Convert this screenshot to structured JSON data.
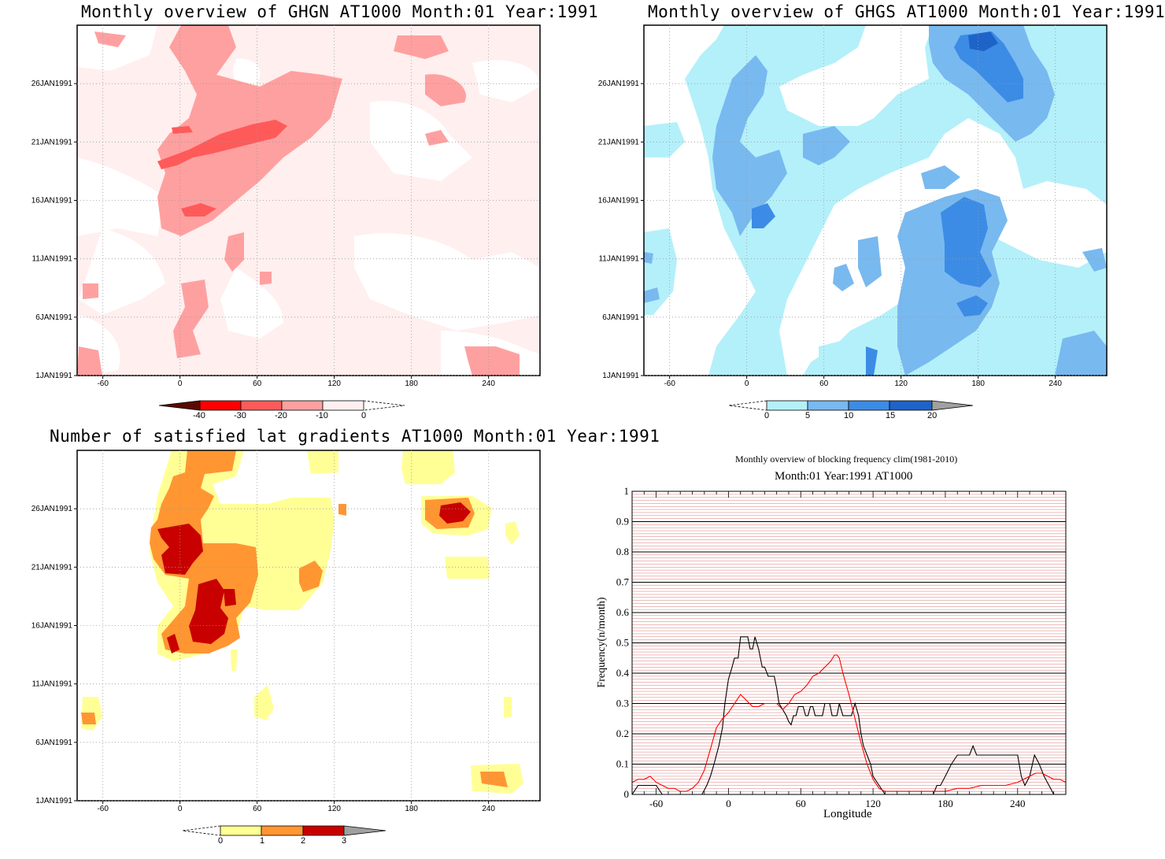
{
  "panels": {
    "ghgn": {
      "title": "Monthly overview of GHGN AT1000 Month:01 Year:1991",
      "x_ticks": [
        "-60",
        "0",
        "60",
        "120",
        "180",
        "240"
      ],
      "y_ticks": [
        "1JAN1991",
        "6JAN1991",
        "11JAN1991",
        "16JAN1991",
        "21JAN1991",
        "26JAN1991"
      ],
      "colorbar": {
        "labels": [
          "-40",
          "-30",
          "-20",
          "-10",
          "0"
        ],
        "colors": [
          "#5a0a00",
          "#ff0000",
          "#ff5a5a",
          "#ffa0a0",
          "#ffefef"
        ]
      }
    },
    "ghgs": {
      "title": "Monthly overview of GHGS AT1000 Month:01 Year:1991",
      "x_ticks": [
        "-60",
        "0",
        "60",
        "120",
        "180",
        "240"
      ],
      "y_ticks": [
        "1JAN1991",
        "6JAN1991",
        "11JAN1991",
        "16JAN1991",
        "21JAN1991",
        "26JAN1991"
      ],
      "colorbar": {
        "labels": [
          "0",
          "5",
          "10",
          "15",
          "20"
        ],
        "colors": [
          "#b4f0fa",
          "#78b9f0",
          "#3c8ce6",
          "#1e64c8",
          "#a0a0a0"
        ]
      }
    },
    "gradients": {
      "title": "Number of satisfied lat gradients AT1000 Month:01 Year:1991",
      "x_ticks": [
        "-60",
        "0",
        "60",
        "120",
        "180",
        "240"
      ],
      "y_ticks": [
        "1JAN1991",
        "6JAN1991",
        "11JAN1991",
        "16JAN1991",
        "21JAN1991",
        "26JAN1991"
      ],
      "colorbar": {
        "labels": [
          "0",
          "1",
          "2",
          "3"
        ],
        "colors": [
          "#ffff96",
          "#ff9632",
          "#c80000",
          "#a0a0a0"
        ]
      }
    },
    "frequency": {
      "title": "Monthly overview of blocking frequency clim(1981-2010)",
      "subtitle": "Month:01 Year:1991  AT1000"
    }
  },
  "chart_data": [
    {
      "type": "heatmap",
      "title": "Monthly overview of GHGN AT1000 Month:01 Year:1991",
      "xlim": [
        -80,
        280
      ],
      "x_ticks": [
        -60,
        0,
        60,
        120,
        180,
        240
      ],
      "y_ticks": [
        "1JAN1991",
        "6JAN1991",
        "11JAN1991",
        "16JAN1991",
        "21JAN1991",
        "26JAN1991"
      ],
      "levels": [
        -40,
        -30,
        -20,
        -10,
        0
      ]
    },
    {
      "type": "heatmap",
      "title": "Monthly overview of GHGS AT1000 Month:01 Year:1991",
      "xlim": [
        -80,
        280
      ],
      "x_ticks": [
        -60,
        0,
        60,
        120,
        180,
        240
      ],
      "y_ticks": [
        "1JAN1991",
        "6JAN1991",
        "11JAN1991",
        "16JAN1991",
        "21JAN1991",
        "26JAN1991"
      ],
      "levels": [
        0,
        5,
        10,
        15,
        20
      ]
    },
    {
      "type": "heatmap",
      "title": "Number of satisfied lat gradients AT1000 Month:01 Year:1991",
      "xlim": [
        -80,
        280
      ],
      "x_ticks": [
        -60,
        0,
        60,
        120,
        180,
        240
      ],
      "y_ticks": [
        "1JAN1991",
        "6JAN1991",
        "11JAN1991",
        "16JAN1991",
        "21JAN1991",
        "26JAN1991"
      ],
      "levels": [
        0,
        1,
        2,
        3
      ]
    },
    {
      "type": "line",
      "title": "Monthly overview of blocking frequency clim(1981-2010)",
      "subtitle": "Month:01 Year:1991  AT1000",
      "xlabel": "Longitude",
      "ylabel": "Frequency(n/month)",
      "xlim": [
        -80,
        280
      ],
      "ylim": [
        0,
        1
      ],
      "x_ticks": [
        -60,
        0,
        60,
        120,
        180,
        240
      ],
      "y_ticks": [
        0,
        0.1,
        0.2,
        0.3,
        0.4,
        0.5,
        0.6,
        0.7,
        0.8,
        0.9,
        1
      ],
      "grid": true,
      "series": [
        {
          "color": "#000000",
          "x": [
            -80,
            -75,
            -70,
            -65,
            -60,
            -55,
            -45,
            -35,
            -25,
            -22,
            -18,
            -15,
            -12,
            -10,
            -8,
            -5,
            -3,
            0,
            3,
            5,
            8,
            10,
            12,
            14,
            16,
            18,
            20,
            22,
            25,
            28,
            30,
            33,
            36,
            38,
            40,
            42,
            45,
            48,
            50,
            52,
            54,
            56,
            58,
            60,
            62,
            64,
            66,
            68,
            70,
            72,
            75,
            78,
            80,
            82,
            84,
            86,
            88,
            90,
            92,
            95,
            98,
            100,
            102,
            105,
            108,
            110,
            112,
            115,
            118,
            120,
            125,
            130,
            140,
            150,
            160,
            170,
            173,
            176,
            180,
            185,
            190,
            195,
            200,
            203,
            206,
            210,
            215,
            220,
            225,
            230,
            235,
            240,
            243,
            246,
            250,
            254,
            258,
            262,
            266,
            270
          ],
          "y": [
            0,
            0.03,
            0.03,
            0.03,
            0.03,
            0,
            0,
            0,
            0,
            0,
            0.03,
            0.06,
            0.1,
            0.13,
            0.16,
            0.22,
            0.3,
            0.38,
            0.42,
            0.45,
            0.45,
            0.52,
            0.52,
            0.52,
            0.52,
            0.48,
            0.48,
            0.52,
            0.48,
            0.42,
            0.42,
            0.39,
            0.39,
            0.39,
            0.35,
            0.3,
            0.28,
            0.26,
            0.24,
            0.23,
            0.26,
            0.26,
            0.29,
            0.29,
            0.29,
            0.26,
            0.26,
            0.29,
            0.29,
            0.26,
            0.26,
            0.26,
            0.3,
            0.3,
            0.3,
            0.26,
            0.26,
            0.26,
            0.3,
            0.26,
            0.26,
            0.26,
            0.26,
            0.3,
            0.26,
            0.2,
            0.16,
            0.13,
            0.1,
            0.06,
            0.03,
            0,
            0,
            0,
            0,
            0,
            0.03,
            0.03,
            0.06,
            0.1,
            0.13,
            0.13,
            0.13,
            0.16,
            0.13,
            0.13,
            0.13,
            0.13,
            0.13,
            0.13,
            0.13,
            0.13,
            0.06,
            0.03,
            0.06,
            0.13,
            0.1,
            0.06,
            0.03,
            0
          ]
        },
        {
          "color": "#ff0000",
          "x": [
            -80,
            -75,
            -70,
            -65,
            -60,
            -55,
            -50,
            -45,
            -40,
            -35,
            -30,
            -25,
            -20,
            -15,
            -10,
            -5,
            0,
            5,
            10,
            15,
            20,
            25,
            30,
            35,
            40,
            45,
            50,
            55,
            60,
            65,
            70,
            75,
            80,
            85,
            88,
            90,
            92,
            95,
            100,
            105,
            110,
            115,
            120,
            125,
            130,
            135,
            140,
            150,
            160,
            170,
            180,
            190,
            200,
            210,
            220,
            230,
            240,
            245,
            250,
            255,
            260,
            265,
            270,
            275,
            280
          ],
          "y": [
            0.04,
            0.05,
            0.05,
            0.06,
            0.04,
            0.03,
            0.02,
            0.02,
            0.01,
            0.01,
            0.02,
            0.04,
            0.08,
            0.15,
            0.22,
            0.25,
            0.27,
            0.3,
            0.33,
            0.31,
            0.29,
            0.29,
            0.3,
            0.3,
            0.3,
            0.28,
            0.3,
            0.33,
            0.34,
            0.36,
            0.39,
            0.4,
            0.42,
            0.44,
            0.46,
            0.46,
            0.45,
            0.4,
            0.33,
            0.25,
            0.17,
            0.1,
            0.05,
            0.02,
            0.01,
            0.01,
            0.01,
            0.01,
            0.01,
            0.01,
            0.01,
            0.02,
            0.02,
            0.03,
            0.03,
            0.03,
            0.04,
            0.05,
            0.06,
            0.07,
            0.07,
            0.06,
            0.05,
            0.05,
            0.04
          ]
        }
      ]
    }
  ]
}
